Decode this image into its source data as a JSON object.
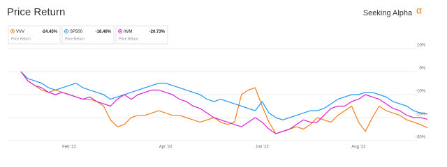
{
  "chart_data": {
    "type": "line",
    "title": "Price Return",
    "brand": "Seeking Alpha",
    "brand_symbol": "α",
    "categories": [
      null,
      null,
      null,
      null,
      null,
      null,
      null,
      "Feb '22",
      null,
      null,
      null,
      null,
      null,
      null,
      null,
      null,
      null,
      null,
      null,
      null,
      null,
      "Apr '22",
      null,
      null,
      null,
      null,
      null,
      null,
      null,
      null,
      null,
      null,
      null,
      null,
      null,
      "Jun '22",
      null,
      null,
      null,
      null,
      null,
      null,
      null,
      null,
      null,
      null,
      null,
      null,
      null,
      "Aug '22",
      null,
      null,
      null,
      null,
      null,
      null,
      null,
      null,
      null,
      null
    ],
    "series": [
      {
        "name": "VVV",
        "color": "#f07e1b",
        "return_label": "-24.45%",
        "subtitle": "Price Return",
        "values": [
          0,
          -4,
          -6,
          -8,
          -9,
          -8,
          -9,
          -10,
          -11,
          -12,
          -12,
          -13,
          -15,
          -21,
          -24,
          -23,
          -20,
          -19,
          -19,
          -18,
          -17,
          -18,
          -19,
          -19,
          -20,
          -21,
          -22,
          -21,
          -20,
          -22,
          -23,
          -22,
          -10,
          -8,
          -7,
          -15,
          -22,
          -27,
          -26,
          -25,
          -24,
          -25,
          -23,
          -20,
          -21,
          -22,
          -19,
          -17,
          -15,
          -22,
          -26,
          -20,
          -15,
          -17,
          -18,
          -19,
          -21,
          -22,
          -23,
          -24.45
        ]
      },
      {
        "name": "SP500",
        "color": "#2196f3",
        "return_label": "-18.46%",
        "subtitle": "Price Return",
        "values": [
          0,
          -3,
          -4,
          -5,
          -7,
          -8,
          -7,
          -6,
          -5,
          -7,
          -8,
          -9,
          -10,
          -12,
          -11,
          -10,
          -9,
          -8,
          -7,
          -6,
          -5,
          -5,
          -6,
          -7,
          -8,
          -9,
          -10,
          -12,
          -13,
          -12,
          -13,
          -14,
          -15,
          -16,
          -17,
          -13,
          -18,
          -20,
          -21,
          -20,
          -19,
          -18,
          -17,
          -17,
          -16,
          -14,
          -12,
          -11,
          -10,
          -10,
          -9,
          -9,
          -10,
          -11,
          -13,
          -14,
          -15,
          -17,
          -18,
          -18.46
        ]
      },
      {
        "name": "IWM",
        "color": "#d620d6",
        "return_label": "-20.73%",
        "subtitle": "Price Return",
        "values": [
          0,
          -4,
          -6,
          -7,
          -9,
          -10,
          -9,
          -10,
          -11,
          -12,
          -11,
          -13,
          -14,
          -15,
          -12,
          -10,
          -12,
          -10,
          -9,
          -8,
          -8,
          -9,
          -10,
          -12,
          -13,
          -15,
          -16,
          -18,
          -20,
          -21,
          -22,
          -23,
          -24,
          -22,
          -20,
          -22,
          -25,
          -27,
          -26,
          -25,
          -23,
          -21,
          -22,
          -22,
          -19,
          -16,
          -15,
          -15,
          -13,
          -12,
          -10,
          -11,
          -12,
          -14,
          -16,
          -17,
          -19,
          -20,
          -20,
          -20.73
        ]
      }
    ],
    "ylim": [
      -30,
      10
    ],
    "yticks": [
      {
        "value": 10,
        "label": "10%"
      },
      {
        "value": 0,
        "label": "0%"
      },
      {
        "value": -10,
        "label": "-10%"
      },
      {
        "value": -20,
        "label": "-20%"
      },
      {
        "value": -30,
        "label": "-30%"
      }
    ],
    "grid": true
  }
}
